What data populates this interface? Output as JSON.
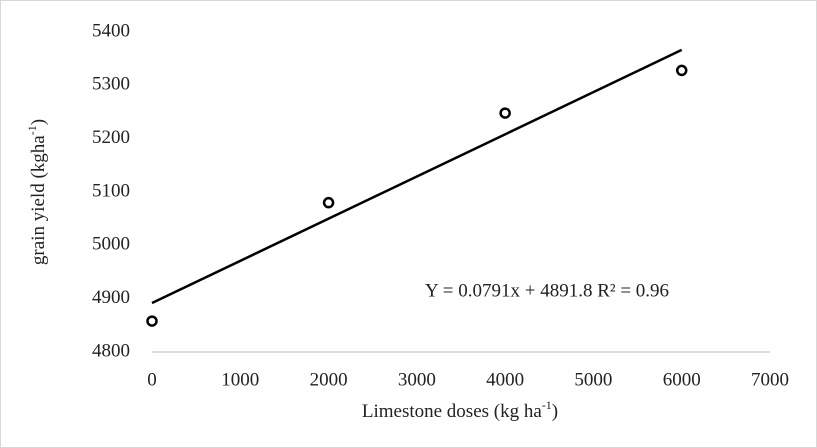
{
  "chart_data": {
    "type": "scatter",
    "xlabel": [
      "Limestone doses (kg ha",
      "-1",
      ")"
    ],
    "ylabel": [
      "grain yield (kgha",
      "-1",
      ")"
    ],
    "annotation": "Y = 0.0791x + 4891.8 R² = 0.96",
    "series": [
      {
        "name": "grain yield",
        "color": "#000000",
        "x": [
          0,
          2000,
          4000,
          6000
        ],
        "values": [
          4858,
          5080,
          5248,
          5328
        ]
      }
    ],
    "trendline": {
      "color": "#000000",
      "x": [
        0,
        6000
      ],
      "values": [
        4891.8,
        5366.4
      ]
    },
    "xlim": [
      0,
      7000
    ],
    "xticks": [
      0,
      1000,
      2000,
      3000,
      4000,
      5000,
      6000,
      7000
    ],
    "ylim": [
      4800,
      5400
    ],
    "yticks": [
      4800,
      4900,
      5000,
      5100,
      5200,
      5300,
      5400
    ],
    "grid": false
  }
}
